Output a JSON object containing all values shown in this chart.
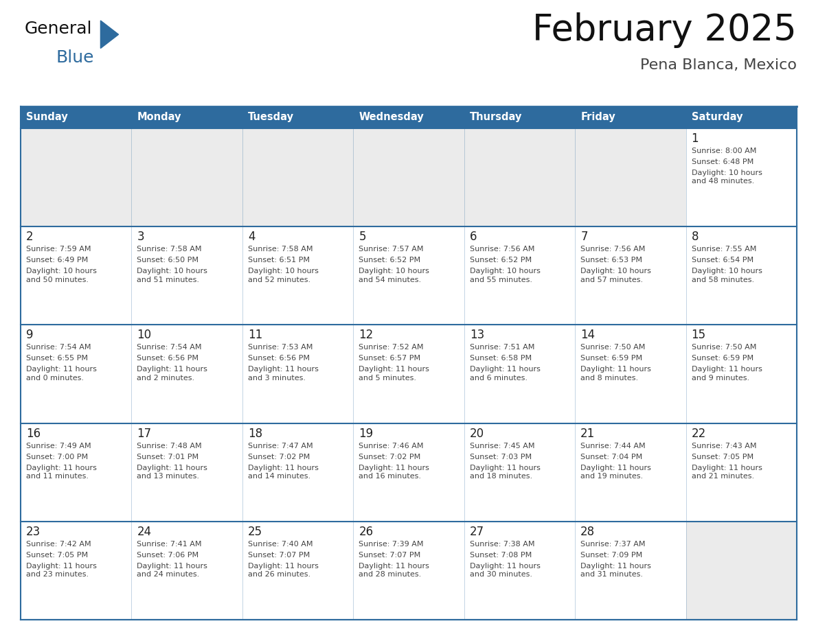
{
  "title": "February 2025",
  "subtitle": "Pena Blanca, Mexico",
  "days_of_week": [
    "Sunday",
    "Monday",
    "Tuesday",
    "Wednesday",
    "Thursday",
    "Friday",
    "Saturday"
  ],
  "header_bg": "#2E6B9E",
  "header_text": "#FFFFFF",
  "cell_bg_white": "#FFFFFF",
  "cell_bg_gray": "#EBEBEB",
  "grid_line_color": "#2E6B9E",
  "day_number_color": "#222222",
  "cell_text_color": "#444444",
  "title_color": "#111111",
  "subtitle_color": "#444444",
  "calendar_data": [
    [
      null,
      null,
      null,
      null,
      null,
      null,
      {
        "day": 1,
        "sunrise": "8:00 AM",
        "sunset": "6:48 PM",
        "daylight": "10 hours\nand 48 minutes."
      }
    ],
    [
      {
        "day": 2,
        "sunrise": "7:59 AM",
        "sunset": "6:49 PM",
        "daylight": "10 hours\nand 50 minutes."
      },
      {
        "day": 3,
        "sunrise": "7:58 AM",
        "sunset": "6:50 PM",
        "daylight": "10 hours\nand 51 minutes."
      },
      {
        "day": 4,
        "sunrise": "7:58 AM",
        "sunset": "6:51 PM",
        "daylight": "10 hours\nand 52 minutes."
      },
      {
        "day": 5,
        "sunrise": "7:57 AM",
        "sunset": "6:52 PM",
        "daylight": "10 hours\nand 54 minutes."
      },
      {
        "day": 6,
        "sunrise": "7:56 AM",
        "sunset": "6:52 PM",
        "daylight": "10 hours\nand 55 minutes."
      },
      {
        "day": 7,
        "sunrise": "7:56 AM",
        "sunset": "6:53 PM",
        "daylight": "10 hours\nand 57 minutes."
      },
      {
        "day": 8,
        "sunrise": "7:55 AM",
        "sunset": "6:54 PM",
        "daylight": "10 hours\nand 58 minutes."
      }
    ],
    [
      {
        "day": 9,
        "sunrise": "7:54 AM",
        "sunset": "6:55 PM",
        "daylight": "11 hours\nand 0 minutes."
      },
      {
        "day": 10,
        "sunrise": "7:54 AM",
        "sunset": "6:56 PM",
        "daylight": "11 hours\nand 2 minutes."
      },
      {
        "day": 11,
        "sunrise": "7:53 AM",
        "sunset": "6:56 PM",
        "daylight": "11 hours\nand 3 minutes."
      },
      {
        "day": 12,
        "sunrise": "7:52 AM",
        "sunset": "6:57 PM",
        "daylight": "11 hours\nand 5 minutes."
      },
      {
        "day": 13,
        "sunrise": "7:51 AM",
        "sunset": "6:58 PM",
        "daylight": "11 hours\nand 6 minutes."
      },
      {
        "day": 14,
        "sunrise": "7:50 AM",
        "sunset": "6:59 PM",
        "daylight": "11 hours\nand 8 minutes."
      },
      {
        "day": 15,
        "sunrise": "7:50 AM",
        "sunset": "6:59 PM",
        "daylight": "11 hours\nand 9 minutes."
      }
    ],
    [
      {
        "day": 16,
        "sunrise": "7:49 AM",
        "sunset": "7:00 PM",
        "daylight": "11 hours\nand 11 minutes."
      },
      {
        "day": 17,
        "sunrise": "7:48 AM",
        "sunset": "7:01 PM",
        "daylight": "11 hours\nand 13 minutes."
      },
      {
        "day": 18,
        "sunrise": "7:47 AM",
        "sunset": "7:02 PM",
        "daylight": "11 hours\nand 14 minutes."
      },
      {
        "day": 19,
        "sunrise": "7:46 AM",
        "sunset": "7:02 PM",
        "daylight": "11 hours\nand 16 minutes."
      },
      {
        "day": 20,
        "sunrise": "7:45 AM",
        "sunset": "7:03 PM",
        "daylight": "11 hours\nand 18 minutes."
      },
      {
        "day": 21,
        "sunrise": "7:44 AM",
        "sunset": "7:04 PM",
        "daylight": "11 hours\nand 19 minutes."
      },
      {
        "day": 22,
        "sunrise": "7:43 AM",
        "sunset": "7:05 PM",
        "daylight": "11 hours\nand 21 minutes."
      }
    ],
    [
      {
        "day": 23,
        "sunrise": "7:42 AM",
        "sunset": "7:05 PM",
        "daylight": "11 hours\nand 23 minutes."
      },
      {
        "day": 24,
        "sunrise": "7:41 AM",
        "sunset": "7:06 PM",
        "daylight": "11 hours\nand 24 minutes."
      },
      {
        "day": 25,
        "sunrise": "7:40 AM",
        "sunset": "7:07 PM",
        "daylight": "11 hours\nand 26 minutes."
      },
      {
        "day": 26,
        "sunrise": "7:39 AM",
        "sunset": "7:07 PM",
        "daylight": "11 hours\nand 28 minutes."
      },
      {
        "day": 27,
        "sunrise": "7:38 AM",
        "sunset": "7:08 PM",
        "daylight": "11 hours\nand 30 minutes."
      },
      {
        "day": 28,
        "sunrise": "7:37 AM",
        "sunset": "7:09 PM",
        "daylight": "11 hours\nand 31 minutes."
      },
      null
    ]
  ],
  "logo_text1": "General",
  "logo_text2": "Blue",
  "logo_text1_color": "#111111",
  "logo_text2_color": "#2E6B9E",
  "logo_triangle_color": "#2E6B9E",
  "fig_width": 11.88,
  "fig_height": 9.18,
  "dpi": 100
}
